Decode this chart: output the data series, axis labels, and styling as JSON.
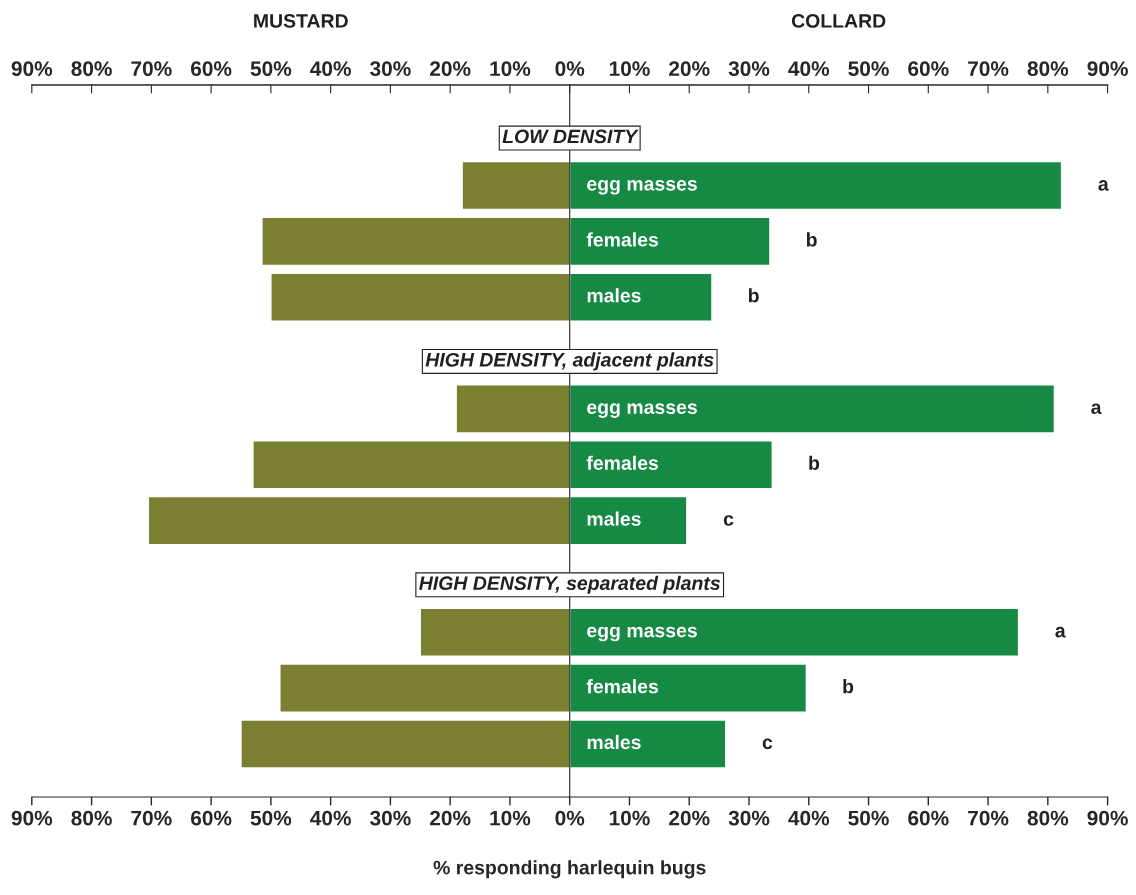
{
  "chart_data": {
    "type": "bar",
    "orientation": "horizontal",
    "stacked": true,
    "categories": [
      null,
      "egg masses",
      "females",
      "males",
      null,
      "egg masses",
      "females",
      "males",
      null,
      "egg masses",
      "females",
      "males"
    ],
    "series": [
      {
        "name": "MUSTARD",
        "color": "#7a7f32",
        "values": [
          null,
          -18,
          -51.5,
          -50,
          null,
          -19,
          -53,
          -70.5,
          null,
          -25,
          -48.5,
          -55
        ]
      },
      {
        "name": "COLLARD",
        "color": "#168a45",
        "values": [
          null,
          82.3,
          33.5,
          23.8,
          null,
          81.1,
          33.9,
          19.6,
          null,
          75.1,
          39.6,
          26.1
        ],
        "value_labels": [
          null,
          "a",
          "b",
          "b",
          null,
          "a",
          "b",
          "c",
          null,
          "a",
          "b",
          "c"
        ]
      }
    ],
    "xlabel": "% responding harlequin bugs",
    "xlim": [
      -90,
      90
    ],
    "xticks": [
      {
        "value": -90,
        "label": "90%"
      },
      {
        "value": -80,
        "label": "80%"
      },
      {
        "value": -70,
        "label": "70%"
      },
      {
        "value": -60,
        "label": "60%"
      },
      {
        "value": -50,
        "label": "50%"
      },
      {
        "value": -40,
        "label": "40%"
      },
      {
        "value": -30,
        "label": "30%"
      },
      {
        "value": -20,
        "label": "20%"
      },
      {
        "value": -10,
        "label": "10%"
      },
      {
        "value": 0,
        "label": "0%"
      },
      {
        "value": 10,
        "label": "10%"
      },
      {
        "value": 20,
        "label": "20%"
      },
      {
        "value": 30,
        "label": "30%"
      },
      {
        "value": 40,
        "label": "40%"
      },
      {
        "value": 50,
        "label": "50%"
      },
      {
        "value": 60,
        "label": "60%"
      },
      {
        "value": 70,
        "label": "70%"
      },
      {
        "value": 80,
        "label": "80%"
      },
      {
        "value": 90,
        "label": "90%"
      }
    ],
    "x2lim": [
      -90,
      90
    ],
    "x2ticks": [
      {
        "value": -90,
        "label": "90%"
      },
      {
        "value": -80,
        "label": "80%"
      },
      {
        "value": -70,
        "label": "70%"
      },
      {
        "value": -60,
        "label": "60%"
      },
      {
        "value": -50,
        "label": "50%"
      },
      {
        "value": -40,
        "label": "40%"
      },
      {
        "value": -30,
        "label": "30%"
      },
      {
        "value": -20,
        "label": "20%"
      },
      {
        "value": -10,
        "label": "10%"
      },
      {
        "value": 0,
        "label": "0%"
      },
      {
        "value": 10,
        "label": "10%"
      },
      {
        "value": 20,
        "label": "20%"
      },
      {
        "value": 30,
        "label": "30%"
      },
      {
        "value": 40,
        "label": "40%"
      },
      {
        "value": 50,
        "label": "50%"
      },
      {
        "value": 60,
        "label": "60%"
      },
      {
        "value": 70,
        "label": "70%"
      },
      {
        "value": 80,
        "label": "80%"
      },
      {
        "value": 90,
        "label": "90%"
      }
    ],
    "annotations": [
      "LOW DENSITY",
      "HIGH DENSITY, adjacent plants",
      "HIGH DENSITY, separated plants"
    ]
  }
}
